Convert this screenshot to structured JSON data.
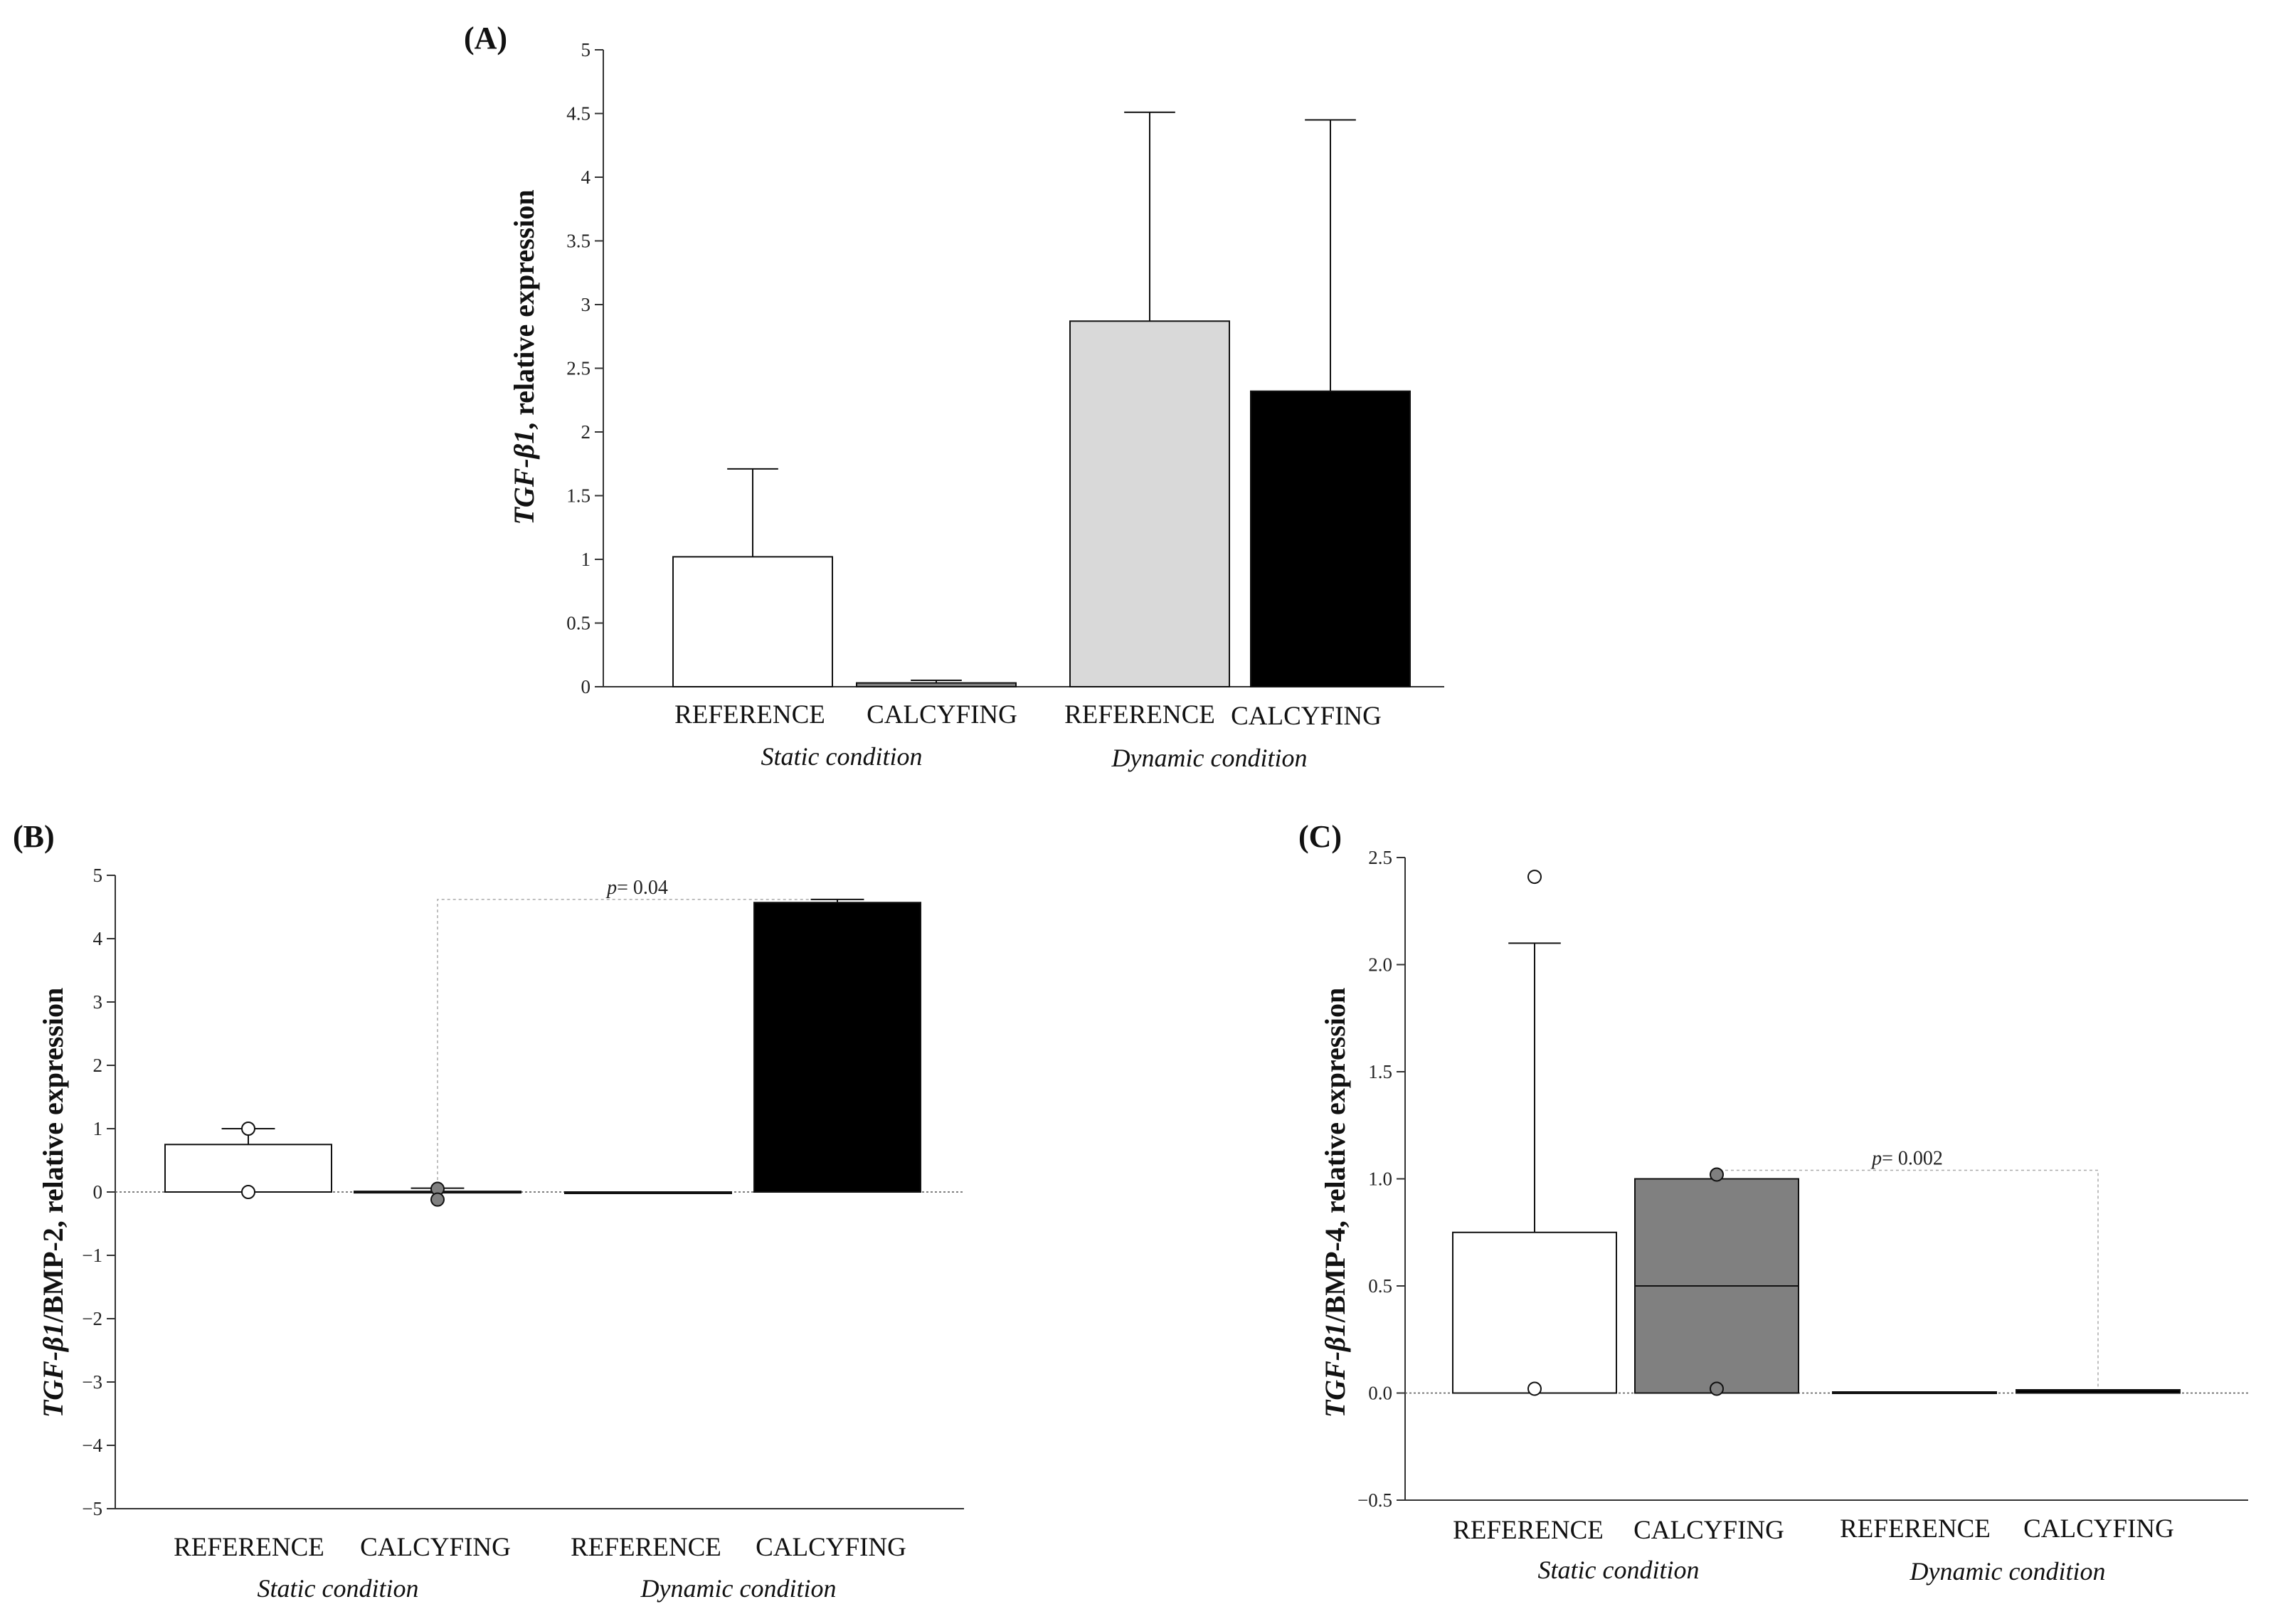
{
  "chart_data": [
    {
      "panel": "(A)",
      "type": "bar",
      "ylabel_italic": "TGF-β1",
      "ylabel_rest": ", relative expression",
      "ylim": [
        0,
        5
      ],
      "yticks": [
        "0",
        "0.5",
        "1",
        "1.5",
        "2",
        "2.5",
        "3",
        "3.5",
        "4",
        "4.5",
        "5"
      ],
      "categories": [
        "REFERENCE",
        "CALCYFING",
        "REFERENCE",
        "CALCYFING"
      ],
      "groups": [
        "Static condition",
        "Dynamic condition"
      ],
      "values": [
        1.02,
        0.03,
        2.87,
        2.32
      ],
      "error_upper": [
        1.71,
        0.05,
        4.51,
        4.45
      ],
      "colors": [
        "#ffffff",
        "#808080",
        "#d9d9d9",
        "#000000"
      ]
    },
    {
      "panel": "(B)",
      "type": "bar",
      "ylabel_italic": "TGF-β1",
      "ylabel_rest": "/BMP-2, relative expression",
      "ylim": [
        -5,
        5
      ],
      "yticks": [
        "−5",
        "−4",
        "−3",
        "−2",
        "−1",
        "0",
        "1",
        "2",
        "3",
        "4",
        "5"
      ],
      "categories": [
        "REFERENCE",
        "CALCYFING",
        "REFERENCE",
        "CALCYFING"
      ],
      "groups": [
        "Static condition",
        "Dynamic condition"
      ],
      "values": [
        0.75,
        0.01,
        0.0,
        4.57
      ],
      "error_upper": [
        1.0,
        0.06,
        null,
        4.62
      ],
      "points": [
        [
          0,
          1.0
        ],
        [
          0,
          0.0
        ],
        [
          1,
          0.05
        ],
        [
          1,
          -0.12
        ]
      ],
      "colors": [
        "#ffffff",
        "#808080",
        "#d9d9d9",
        "#000000"
      ],
      "annotation": {
        "label": "p",
        "text": "= 0.04",
        "from": 1,
        "to": 3,
        "y": 4.62
      }
    },
    {
      "panel": "(C)",
      "type": "bar",
      "ylabel_italic": "TGF-β1",
      "ylabel_rest": "/BMP-4, relative expression",
      "ylim": [
        -0.5,
        2.5
      ],
      "yticks": [
        "−0.5",
        "0.0",
        "0.5",
        "1.0",
        "1.5",
        "2.0",
        "2.5"
      ],
      "categories": [
        "REFERENCE",
        "CALCYFING",
        "REFERENCE",
        "CALCYFING"
      ],
      "groups": [
        "Static condition",
        "Dynamic condition"
      ],
      "values": [
        0.75,
        1.0,
        0.005,
        0.015
      ],
      "median": [
        null,
        0.5,
        null,
        null
      ],
      "error_upper": [
        2.1,
        null,
        null,
        null
      ],
      "points": [
        [
          0,
          2.41
        ],
        [
          0,
          0.02
        ],
        [
          1,
          1.02
        ],
        [
          1,
          0.02
        ]
      ],
      "colors": [
        "#ffffff",
        "#808080",
        "#d9d9d9",
        "#000000"
      ],
      "annotation": {
        "label": "p",
        "text": "= 0.002",
        "from": 1,
        "to": 3,
        "y": 1.04
      }
    }
  ]
}
